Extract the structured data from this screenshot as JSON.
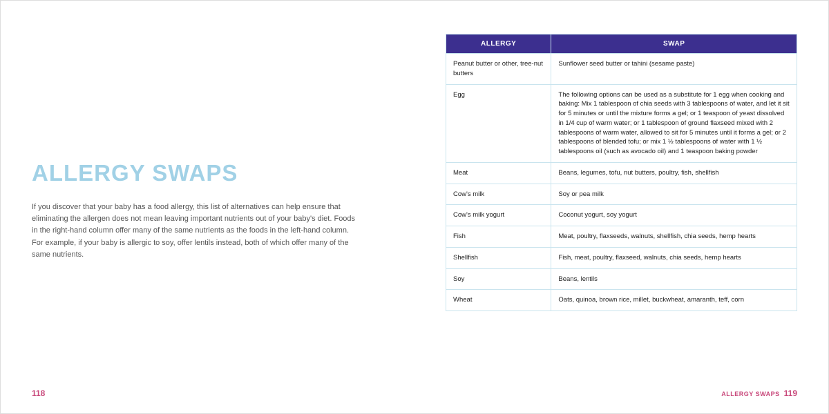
{
  "left": {
    "title": "ALLERGY SWAPS",
    "intro": "If you discover that your baby has a food allergy, this list of alternatives can help ensure that eliminating the allergen does not mean leaving important nutrients out of your baby's diet. Foods in the right-hand column offer many of the same nutrients as the foods in the left-hand column. For example, if your baby is allergic to soy, offer lentils instead, both of which offer many of the same nutrients.",
    "page_number": "118"
  },
  "right": {
    "section_label": "ALLERGY SWAPS",
    "page_number": "119",
    "table": {
      "header_allergy": "ALLERGY",
      "header_swap": "SWAP",
      "rows": [
        {
          "allergy": "Peanut butter or other, tree-nut butters",
          "swap": "Sunflower seed butter or tahini (sesame paste)"
        },
        {
          "allergy": "Egg",
          "swap": "The following options can be used as a substitute for 1 egg when cooking and baking: Mix 1 tablespoon of chia seeds with 3 tablespoons of water, and let it sit for 5 minutes or until the mixture forms a gel; or 1 teaspoon of yeast dissolved in 1/4 cup of warm water; or 1 tablespoon of ground flaxseed mixed with 2 tablespoons of warm water, allowed to sit for 5 minutes until it forms a gel; or 2 tablespoons of blended tofu; or mix 1 ½ tablespoons of water with 1 ½ tablespoons oil (such as avocado oil) and 1 teaspoon baking powder"
        },
        {
          "allergy": "Meat",
          "swap": "Beans, legumes, tofu, nut butters, poultry, fish, shellfish"
        },
        {
          "allergy": "Cow's milk",
          "swap": "Soy or pea milk"
        },
        {
          "allergy": "Cow's milk yogurt",
          "swap": "Coconut yogurt, soy yogurt"
        },
        {
          "allergy": "Fish",
          "swap": "Meat, poultry, flaxseeds, walnuts, shellfish, chia seeds, hemp hearts"
        },
        {
          "allergy": "Shellfish",
          "swap": "Fish, meat, poultry, flaxseed, walnuts, chia seeds, hemp hearts"
        },
        {
          "allergy": "Soy",
          "swap": "Beans, lentils"
        },
        {
          "allergy": "Wheat",
          "swap": "Oats, quinoa, brown rice, millet, buckwheat, amaranth, teff, corn"
        }
      ]
    }
  },
  "colors": {
    "title": "#a1d1e6",
    "header_bg": "#3c2f8f",
    "border": "#c9e4ee",
    "page_num": "#c94a7c"
  }
}
